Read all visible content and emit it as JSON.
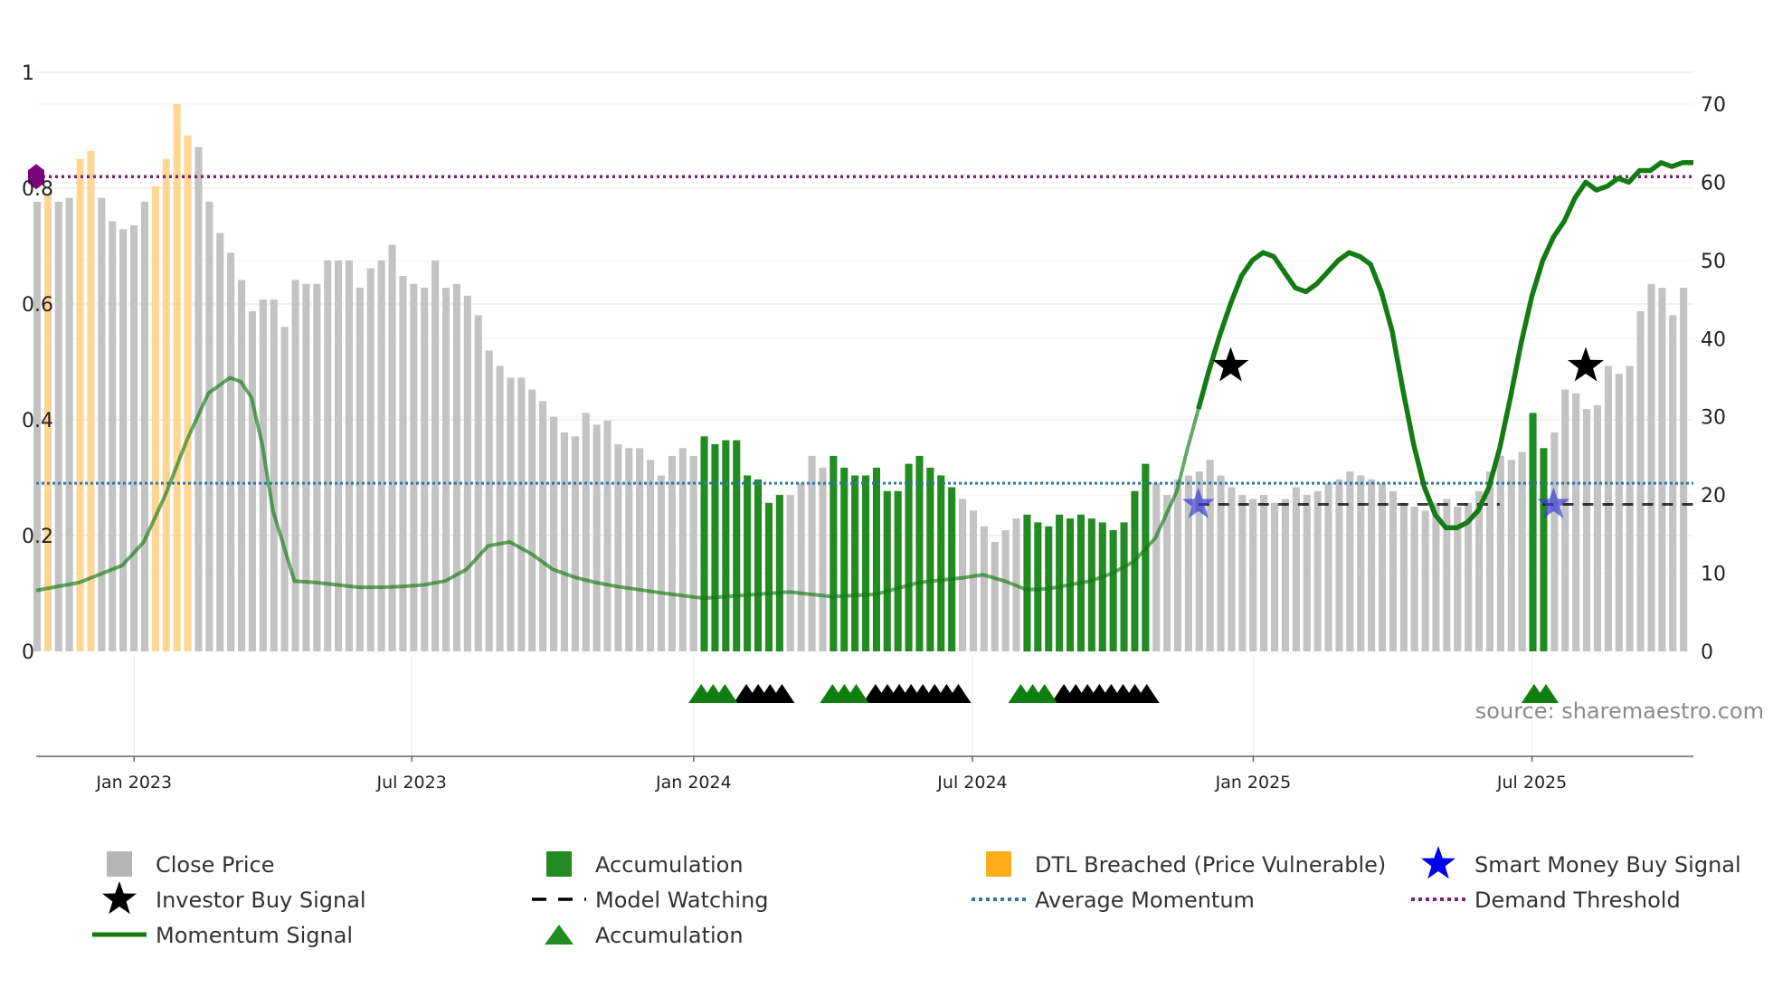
{
  "chart_data": {
    "type": "bar",
    "source": "source: sharemaestro.com",
    "left_axis": {
      "range": [
        0,
        1
      ],
      "ticks": [
        "0",
        "0.2",
        "0.4",
        "0.6",
        "0.8",
        "1"
      ]
    },
    "right_axis": {
      "range": [
        0,
        70
      ],
      "ticks": [
        "0",
        "10",
        "20",
        "30",
        "40",
        "50",
        "60",
        "70"
      ]
    },
    "x_axis": {
      "start_week": -4,
      "end_week": 150,
      "date_ticks": [
        {
          "label": "Jan 2023",
          "week": 5.1
        },
        {
          "label": "Jul 2023",
          "week": 30.9
        },
        {
          "label": "Jan 2024",
          "week": 57.1
        },
        {
          "label": "Jul 2024",
          "week": 83.0
        },
        {
          "label": "Jan 2025",
          "week": 109.1
        },
        {
          "label": "Jul 2025",
          "week": 135.0
        }
      ]
    },
    "bar_first_week": -4,
    "bar_values": [
      57.5,
      58.5,
      57.5,
      58.0,
      63.0,
      64.0,
      58.0,
      55.0,
      54.0,
      54.5,
      57.5,
      59.5,
      63.0,
      70.0,
      66.0,
      64.5,
      57.5,
      53.5,
      51.0,
      47.5,
      43.5,
      45.0,
      45.0,
      41.5,
      47.5,
      47.0,
      47.0,
      50.0,
      50.0,
      50.0,
      46.5,
      49.0,
      50.0,
      52.0,
      48.0,
      47.0,
      46.5,
      50.0,
      46.5,
      47.0,
      45.5,
      43.0,
      38.5,
      36.5,
      35.0,
      35.0,
      33.5,
      32.0,
      30.0,
      28.0,
      27.5,
      30.5,
      29.0,
      29.5,
      26.5,
      26.0,
      26.0,
      24.5,
      22.5,
      25.0,
      26.0,
      25.0,
      27.5,
      26.5,
      27.0,
      27.0,
      22.5,
      22.0,
      19.0,
      20.0,
      20.0,
      21.5,
      25.0,
      23.5,
      25.0,
      23.5,
      22.5,
      22.5,
      23.5,
      20.5,
      20.5,
      24.0,
      25.0,
      23.5,
      22.5,
      21.0,
      19.5,
      18.0,
      16.0,
      14.0,
      15.5,
      17.0,
      17.5,
      16.5,
      16.0,
      17.5,
      17.0,
      17.5,
      17.0,
      16.5,
      15.5,
      16.5,
      20.5,
      24.0,
      21.5,
      20.0,
      22.0,
      22.5,
      23.0,
      24.5,
      22.5,
      21.0,
      20.0,
      19.5,
      20.0,
      19.0,
      19.5,
      21.0,
      20.0,
      20.5,
      21.5,
      22.0,
      23.0,
      22.5,
      22.0,
      21.5,
      20.5,
      19.0,
      18.5,
      18.0,
      19.0,
      19.5,
      18.5,
      19.0,
      20.5,
      23.0,
      25.0,
      24.5,
      25.5,
      30.5,
      26.0,
      28.0,
      33.5,
      33.0,
      31.0,
      31.5,
      36.5,
      35.5,
      36.5,
      43.5,
      47.0,
      46.5,
      43.0,
      46.5
    ],
    "bar_colors": {
      "close_price": "#c3c3c3",
      "accumulation": "#228b22",
      "dtl_breached": "#ffd694"
    },
    "accumulation_week_ranges": [
      [
        58,
        65
      ],
      [
        70,
        81
      ],
      [
        88,
        99
      ],
      [
        135,
        136
      ]
    ],
    "dtl_week_ranges": [
      [
        -3,
        -3
      ],
      [
        0,
        1
      ],
      [
        7,
        10
      ]
    ],
    "momentum_signal": {
      "x": [
        -4,
        0,
        4,
        6,
        8,
        10,
        12,
        14,
        15,
        16,
        17,
        18,
        20,
        22,
        24,
        26,
        28,
        30,
        32,
        34,
        36,
        38,
        40,
        42,
        44,
        46,
        48,
        50,
        54,
        58,
        62,
        66,
        70,
        74,
        78,
        82,
        84,
        86,
        88,
        90,
        92,
        94,
        96,
        98,
        100,
        102,
        103,
        104,
        105,
        106,
        107,
        108,
        109,
        110,
        111,
        112,
        113,
        114,
        115,
        116,
        117,
        118,
        119,
        120,
        121,
        122,
        123,
        124,
        125,
        126,
        127,
        128,
        129,
        130,
        131,
        132,
        133,
        134,
        135,
        136,
        137,
        138,
        139,
        140,
        141,
        142,
        143,
        144,
        145,
        146,
        147,
        148,
        149,
        150
      ],
      "y": [
        7.8,
        8.8,
        11.0,
        14.0,
        20.0,
        27.0,
        33.0,
        35.0,
        34.5,
        32.5,
        26.5,
        18.0,
        9.0,
        8.8,
        8.5,
        8.2,
        8.2,
        8.3,
        8.5,
        9.0,
        10.5,
        13.5,
        14.0,
        12.5,
        10.5,
        9.5,
        8.8,
        8.3,
        7.5,
        6.8,
        7.2,
        7.6,
        7.0,
        7.3,
        8.8,
        9.4,
        9.8,
        9.0,
        7.9,
        8.0,
        8.5,
        9.0,
        10.0,
        11.5,
        14.5,
        20.5,
        26.0,
        31.0,
        36.0,
        40.5,
        44.5,
        48.0,
        50.0,
        51.0,
        50.5,
        48.5,
        46.5,
        46.0,
        47.0,
        48.5,
        50.0,
        51.0,
        50.5,
        49.5,
        46.0,
        41.0,
        33.5,
        26.5,
        21.0,
        17.5,
        15.8,
        15.8,
        16.5,
        18.0,
        21.0,
        26.0,
        32.5,
        39.5,
        45.5,
        50.0,
        53.0,
        55.0,
        58.0,
        60.0,
        59.0,
        59.5,
        60.5,
        60.0,
        61.5,
        61.5,
        62.5,
        62.0,
        62.5,
        62.5
      ],
      "color": "#147a14",
      "fade_before_week": 104
    },
    "average_momentum": {
      "value": 21.5,
      "color": "#2e78a8"
    },
    "demand_threshold": {
      "value": 0.82,
      "color": "#7a1f7a"
    },
    "model_watching": {
      "y": 18.8,
      "x_ranges": [
        [
          104,
          132
        ],
        [
          136,
          150
        ]
      ]
    },
    "investor_buy_signals": [
      {
        "week": 107,
        "y": 36.5
      },
      {
        "week": 140,
        "y": 36.5
      }
    ],
    "smart_money_buy_signals": [
      {
        "week": 104,
        "y": 18.8
      },
      {
        "week": 137,
        "y": 18.8
      }
    ],
    "accumulation_triangles": {
      "green_weeks": [
        57.8,
        58.9,
        60.0,
        70.0,
        71.1,
        72.2,
        87.5,
        88.6,
        89.7,
        135.2,
        136.3
      ],
      "black_weeks": [
        62.0,
        63.1,
        64.2,
        65.3,
        74.0,
        75.1,
        76.2,
        77.3,
        78.4,
        79.5,
        80.6,
        81.7,
        91.5,
        92.6,
        93.7,
        94.8,
        95.9,
        97.0,
        98.1,
        99.2
      ]
    },
    "legend": [
      {
        "label": "Close Price",
        "symbol": "square",
        "color": "#b5b5b5"
      },
      {
        "label": "Accumulation",
        "symbol": "square",
        "color": "#228b22"
      },
      {
        "label": "DTL Breached (Price Vulnerable)",
        "symbol": "square",
        "color": "#ffae1a"
      },
      {
        "label": "Smart Money Buy Signal",
        "symbol": "star",
        "color": "#0000ee"
      },
      {
        "label": "Investor Buy Signal",
        "symbol": "star",
        "color": "#000000"
      },
      {
        "label": "Model Watching",
        "symbol": "dash",
        "color": "#000000"
      },
      {
        "label": "Average Momentum",
        "symbol": "dotted",
        "color": "#2e78a8"
      },
      {
        "label": "Demand Threshold",
        "symbol": "dotted",
        "color": "#7a1f7a"
      },
      {
        "label": "Momentum Signal",
        "symbol": "line",
        "color": "#147a14"
      },
      {
        "label": "Accumulation",
        "symbol": "triangle",
        "color": "#228b22"
      }
    ]
  }
}
